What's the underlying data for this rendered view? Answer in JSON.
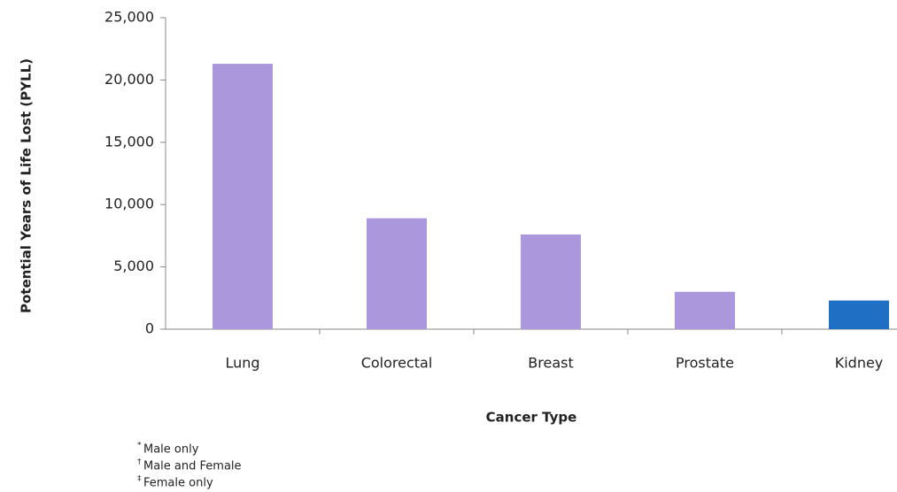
{
  "chart_data": {
    "type": "bar",
    "categories": [
      "Lung",
      "Colorectal",
      "Breast",
      "Prostate",
      "Kidney"
    ],
    "values": [
      21300,
      8900,
      7600,
      3000,
      2300
    ],
    "colors": [
      "#ab97db",
      "#ab97db",
      "#ab97db",
      "#ab97db",
      "#1f6fc5"
    ],
    "ylim": [
      0,
      25000
    ],
    "yticks": [
      0,
      {
        "value": 5000,
        "label": "5,000"
      },
      {
        "value": 10000,
        "label": "10,000"
      },
      {
        "value": 15000,
        "label": "15,000"
      },
      {
        "value": 20000,
        "label": "20,000"
      },
      {
        "value": 25000,
        "label": "25,000"
      }
    ],
    "ylabel": "Potential Years of Life Lost (PYLL)",
    "xlabel": "Cancer Type",
    "footnotes": [
      {
        "symbol": "*",
        "text": "Male only"
      },
      {
        "symbol": "†",
        "text": "Male and Female"
      },
      {
        "symbol": "‡",
        "text": "Female only"
      }
    ]
  }
}
